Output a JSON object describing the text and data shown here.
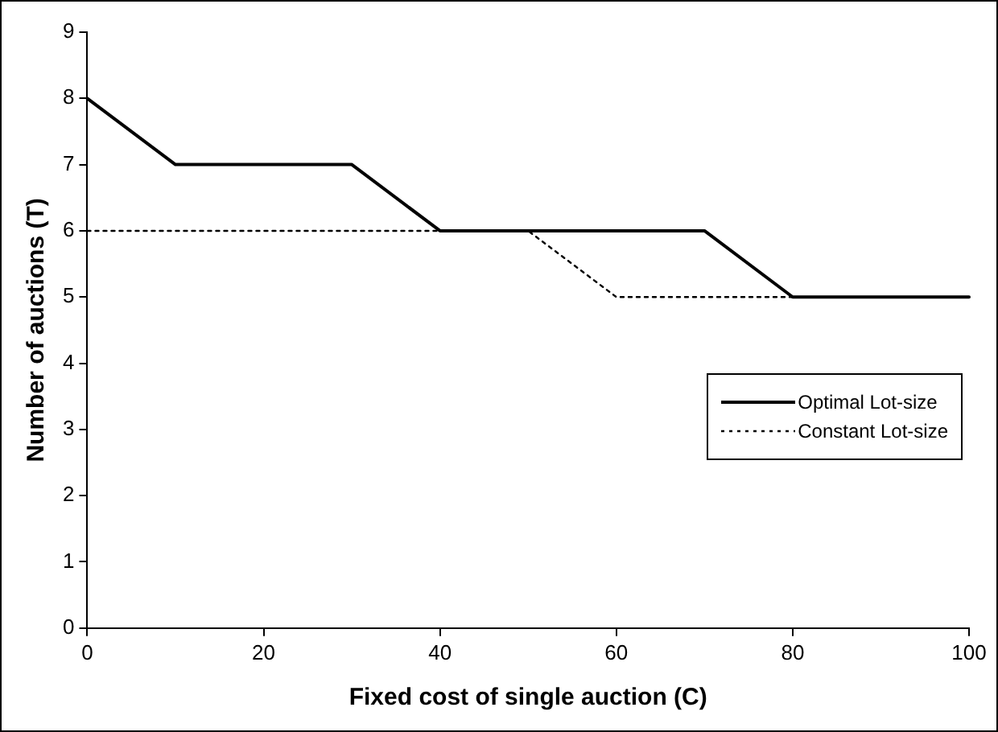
{
  "chart_data": {
    "type": "line",
    "xlabel": "Fixed cost of single auction (C)",
    "ylabel": "Number of auctions (T)",
    "x": [
      0,
      10,
      20,
      30,
      40,
      50,
      60,
      70,
      80,
      90,
      100
    ],
    "series": [
      {
        "name": "Optimal Lot-size",
        "color": "#000000",
        "line_style": "solid",
        "values": [
          8,
          7,
          7,
          7,
          6,
          6,
          6,
          6,
          5,
          5,
          5
        ]
      },
      {
        "name": "Constant Lot-size",
        "color": "#000000",
        "line_style": "dotted",
        "values": [
          6,
          6,
          6,
          6,
          6,
          6,
          5,
          5,
          5,
          5,
          5
        ]
      }
    ],
    "xlim": [
      0,
      100
    ],
    "xticks": [
      0,
      20,
      40,
      60,
      80,
      100
    ],
    "ylim": [
      0,
      9
    ],
    "yticks": [
      0,
      1,
      2,
      3,
      4,
      5,
      6,
      7,
      8,
      9
    ],
    "grid": false,
    "legend": "right",
    "marker": "none"
  }
}
